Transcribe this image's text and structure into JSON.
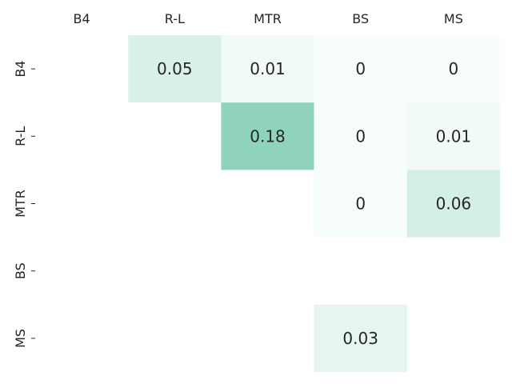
{
  "chart_data": {
    "type": "heatmap",
    "title": "",
    "xlabel": "",
    "ylabel": "",
    "columns": [
      "B4",
      "R-L",
      "MTR",
      "BS",
      "MS"
    ],
    "rows": [
      "B4",
      "R-L",
      "MTR",
      "BS",
      "MS"
    ],
    "values": [
      [
        null,
        0.05,
        0.01,
        0,
        0
      ],
      [
        null,
        null,
        0.18,
        0,
        0.01
      ],
      [
        null,
        null,
        null,
        0,
        0.06
      ],
      [
        null,
        null,
        null,
        null,
        null
      ],
      [
        null,
        null,
        null,
        0.03,
        null
      ]
    ],
    "cell_labels": [
      [
        "",
        "0.05",
        "0.01",
        "0",
        "0"
      ],
      [
        "",
        "",
        "0.18",
        "0",
        "0.01"
      ],
      [
        "",
        "",
        "",
        "0",
        "0.06"
      ],
      [
        "",
        "",
        "",
        "",
        ""
      ],
      [
        "",
        "",
        "",
        "0.03",
        ""
      ]
    ],
    "color_range": [
      0,
      0.25
    ],
    "color_low": "#f7fcfd",
    "color_high": "#66c2a4",
    "x_ticks_position": "top",
    "colorbar": false,
    "grid": false
  }
}
